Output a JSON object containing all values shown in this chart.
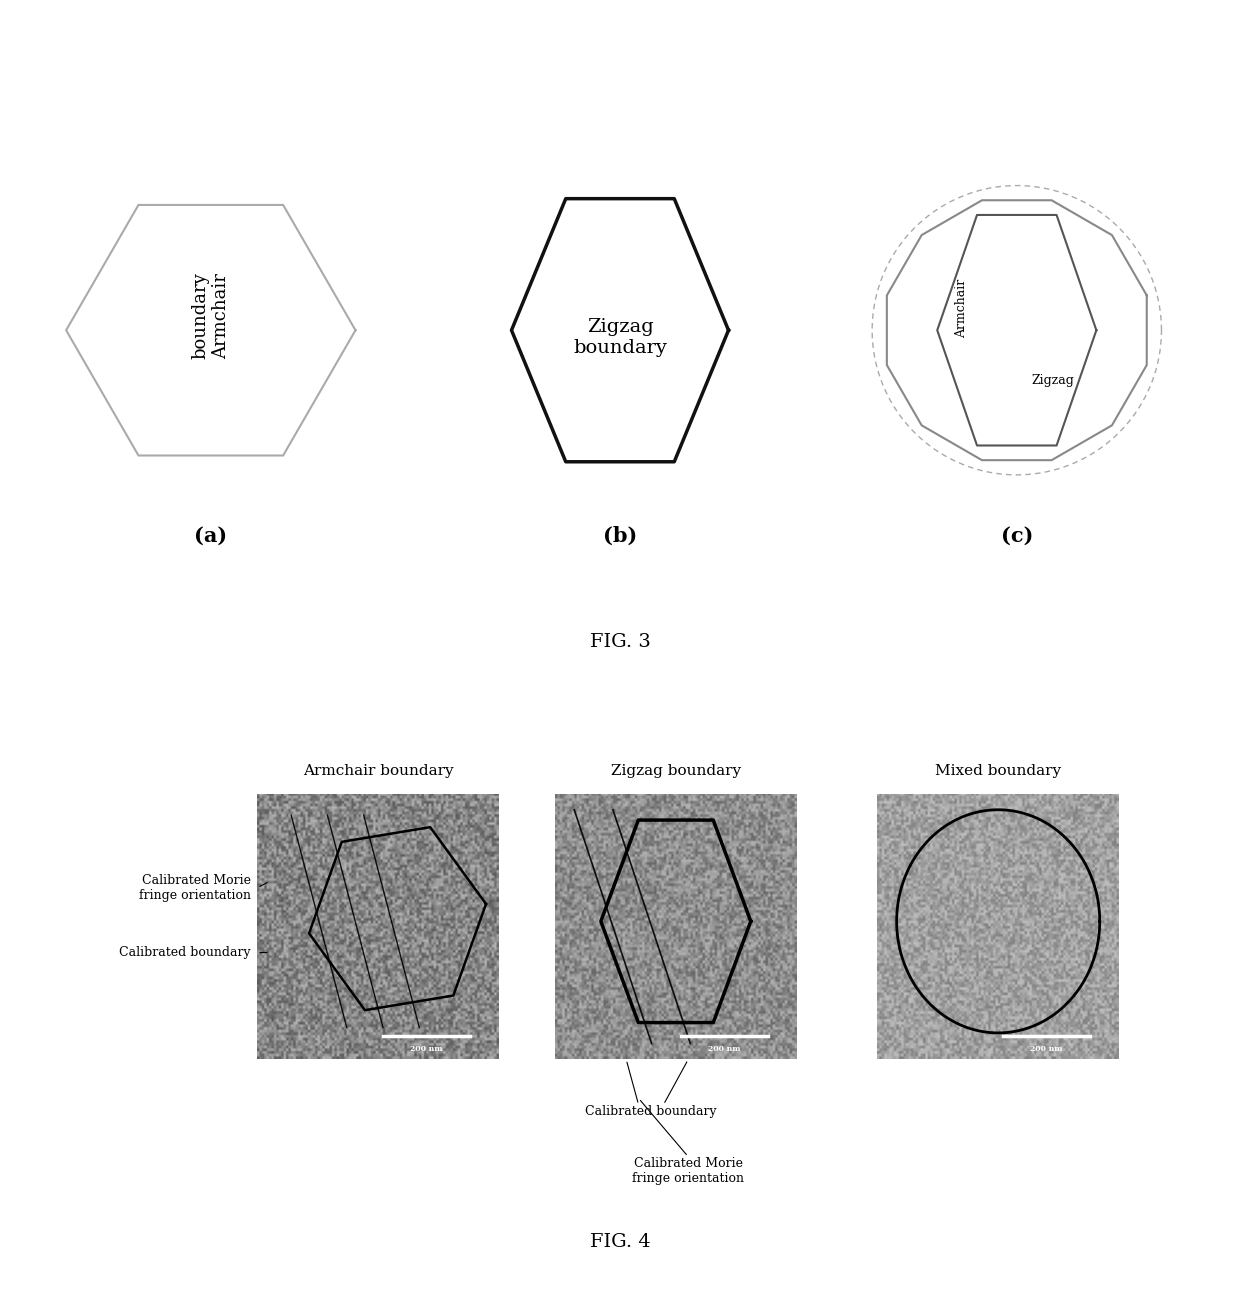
{
  "fig3_title": "FIG. 3",
  "fig4_title": "FIG. 4",
  "panel_a_label": "(a)",
  "panel_b_label": "(b)",
  "panel_c_label": "(c)",
  "fig4_labels": {
    "armchair_title": "Armchair boundary",
    "zigzag_title": "Zigzag boundary",
    "mixed_title": "Mixed boundary",
    "calibrated_morie_left": "Calibrated Morie\nfringe orientation",
    "calibrated_boundary_left": "Calibrated boundary",
    "calibrated_boundary_center": "Calibrated boundary",
    "calibrated_morie_center": "Calibrated Morie\nfringe orientation"
  },
  "scale_bar_text": "200 nm",
  "bg_color": "#ffffff",
  "hex_color_a": "#888888",
  "hex_color_b": "#2a2a2a",
  "noise_seed1": 42,
  "noise_seed2": 43,
  "noise_seed3": 44
}
